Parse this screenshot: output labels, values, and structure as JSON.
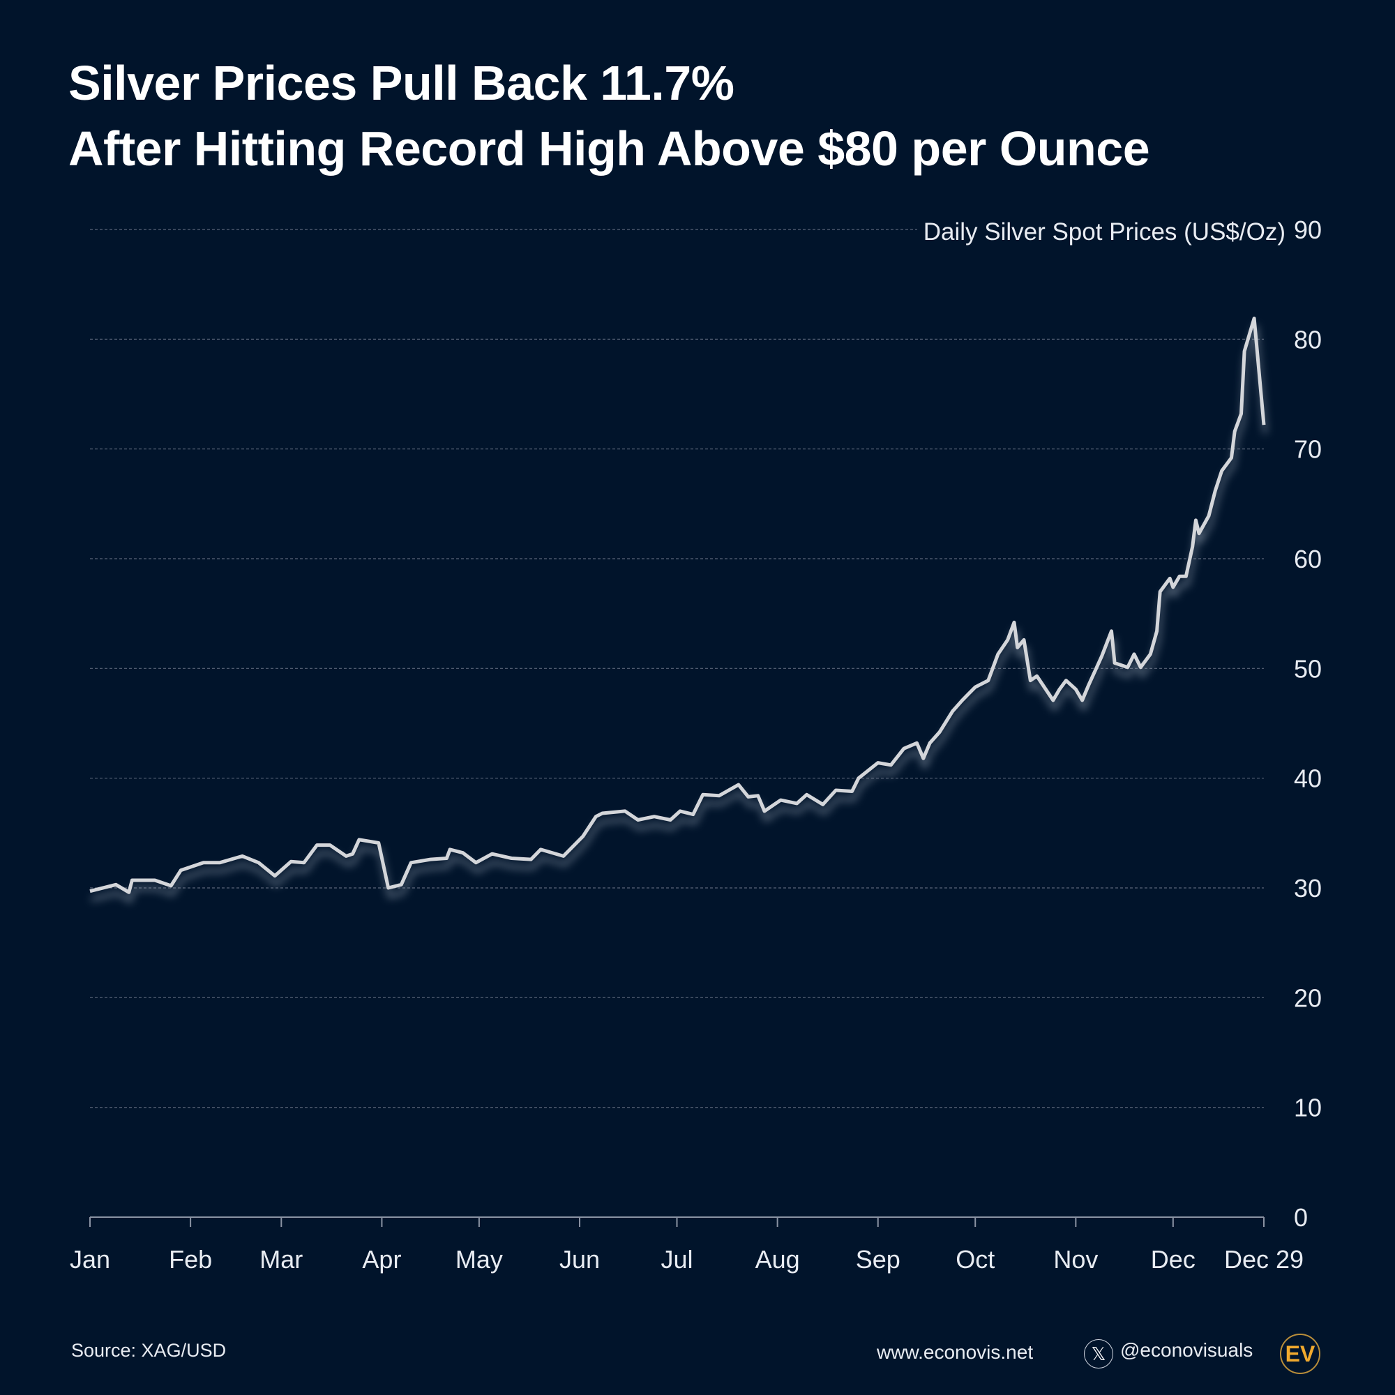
{
  "title": {
    "line1": "Silver Prices Pull Back 11.7%",
    "line2": "After Hitting Record High Above $80 per Ounce"
  },
  "footer": {
    "source": "Source: XAG/USD",
    "website": "www.econovis.net",
    "handle": "@econovisuals",
    "x_icon": "x-logo-icon",
    "logo": "EV"
  },
  "colors": {
    "background": "#01142b",
    "line": "#d4d6da",
    "grid": "#5a6478",
    "logo": "#f0a92e"
  },
  "chart_data": {
    "type": "line",
    "title": "",
    "ylabel": "Daily Silver Spot Prices (US$/Oz)",
    "ylim": [
      0,
      90
    ],
    "yticks": [
      0,
      10,
      20,
      30,
      40,
      50,
      60,
      70,
      80,
      90
    ],
    "y_axis_side": "right",
    "grid": "horizontal dashed",
    "xtick_labels": [
      "Jan",
      "Feb",
      "Mar",
      "Apr",
      "May",
      "Jun",
      "Jul",
      "Aug",
      "Sep",
      "Oct",
      "Nov",
      "Dec",
      "Dec 29"
    ],
    "xtick_dates": [
      "01-01",
      "02-01",
      "03-01",
      "04-01",
      "05-01",
      "06-01",
      "07-01",
      "08-01",
      "09-01",
      "10-01",
      "11-01",
      "12-01",
      "12-29"
    ],
    "series": [
      {
        "x": [
          "01-01",
          "01-09",
          "01-13",
          "01-14",
          "01-21",
          "01-26",
          "01-29",
          "02-05",
          "02-10",
          "02-17",
          "02-22",
          "02-27",
          "03-04",
          "03-08",
          "03-12",
          "03-16",
          "03-21",
          "03-23",
          "03-25",
          "03-31",
          "04-03",
          "04-07",
          "04-10",
          "04-16",
          "04-21",
          "04-22",
          "04-26",
          "04-30",
          "05-05",
          "05-11",
          "05-17",
          "05-20",
          "05-27",
          "06-02",
          "06-06",
          "06-08",
          "06-15",
          "06-19",
          "06-24",
          "06-29",
          "07-02",
          "07-06",
          "07-09",
          "07-14",
          "07-20",
          "07-23",
          "07-26",
          "07-28",
          "08-02",
          "08-07",
          "08-10",
          "08-15",
          "08-19",
          "08-24",
          "08-26",
          "09-01",
          "09-05",
          "09-09",
          "09-13",
          "09-15",
          "09-17",
          "09-20",
          "09-24",
          "09-27",
          "09-29",
          "10-01",
          "10-05",
          "10-08",
          "10-11",
          "10-13",
          "10-14",
          "10-16",
          "10-18",
          "10-20",
          "10-25",
          "10-27",
          "10-29",
          "11-01",
          "11-03",
          "11-05",
          "11-09",
          "11-12",
          "11-13",
          "11-17",
          "11-19",
          "11-21",
          "11-24",
          "11-26",
          "11-27",
          "11-30",
          "12-01",
          "12-03",
          "12-05",
          "12-07",
          "12-08",
          "12-09",
          "12-12",
          "12-14",
          "12-16",
          "12-19",
          "12-20",
          "12-22",
          "12-23",
          "12-26",
          "12-29"
        ],
        "y": [
          29.7,
          30.3,
          29.6,
          30.7,
          30.7,
          30.2,
          31.6,
          32.3,
          32.3,
          32.9,
          32.3,
          31.1,
          32.4,
          32.3,
          33.9,
          33.9,
          32.9,
          33.1,
          34.4,
          34.1,
          30.0,
          30.3,
          32.3,
          32.6,
          32.7,
          33.5,
          33.2,
          32.3,
          33.1,
          32.7,
          32.6,
          33.5,
          32.9,
          34.7,
          36.5,
          36.8,
          37.0,
          36.2,
          36.5,
          36.2,
          37.0,
          36.7,
          38.5,
          38.4,
          39.4,
          38.3,
          38.4,
          37.0,
          38.0,
          37.7,
          38.5,
          37.6,
          38.9,
          38.8,
          40.0,
          41.4,
          41.2,
          42.7,
          43.2,
          41.8,
          43.2,
          44.2,
          46.1,
          47.1,
          47.7,
          48.3,
          48.9,
          51.3,
          52.6,
          54.2,
          51.9,
          52.6,
          48.9,
          49.3,
          47.1,
          48.1,
          48.9,
          48.1,
          47.1,
          48.5,
          51.1,
          53.4,
          50.5,
          50.1,
          51.3,
          50.1,
          51.3,
          53.4,
          57.0,
          58.2,
          57.4,
          58.4,
          58.4,
          61.1,
          63.5,
          62.3,
          63.9,
          66.2,
          68.0,
          69.2,
          71.6,
          73.2,
          78.9,
          81.9,
          72.2
        ]
      }
    ]
  }
}
